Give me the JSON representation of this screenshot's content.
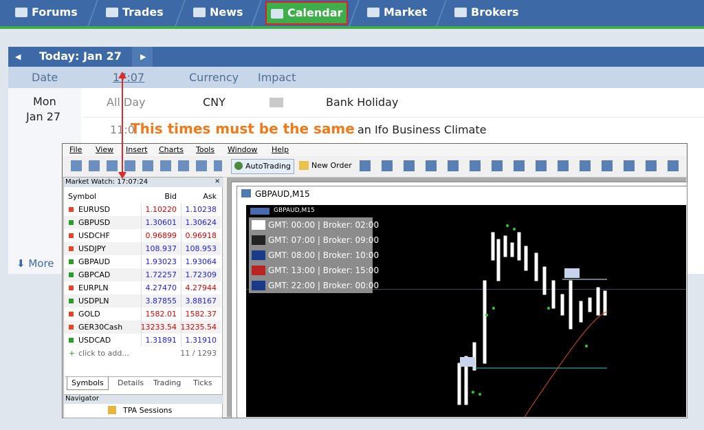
{
  "nav": {
    "tabs": [
      "Forums",
      "Trades",
      "News",
      "Calendar",
      "Market",
      "Brokers"
    ]
  },
  "calendar": {
    "today": "Today: Jan 27",
    "headers": [
      "Date",
      "17:07",
      "Currency",
      "Impact"
    ],
    "rows": [
      {
        "day": "Mon",
        "date": "Jan 27",
        "time": "All Day",
        "currency": "CNY",
        "event": "Bank Holiday"
      },
      {
        "time": "11:0",
        "event": "an Ifo Business Climate"
      }
    ],
    "more": "More"
  },
  "annotation": "This times must be the same",
  "terminal": {
    "menu": [
      "File",
      "View",
      "Insert",
      "Charts",
      "Tools",
      "Window",
      "Help"
    ],
    "toolbar": [
      "AutoTrading",
      "New Order"
    ],
    "market_watch": {
      "title": "Market Watch: 17:07:24",
      "headers": [
        "Symbol",
        "Bid",
        "Ask"
      ],
      "rows": [
        {
          "symbol": "EURUSD",
          "bid": "1.10220",
          "ask": "1.10238",
          "icon_color": "#e8442a",
          "bid_color": "#e00000",
          "ask_color": "#1a1aff"
        },
        {
          "symbol": "GBPUSD",
          "bid": "1.30601",
          "ask": "1.30624",
          "icon_color": "#28a028",
          "bid_color": "#1a1aff",
          "ask_color": "#1a1aff"
        },
        {
          "symbol": "USDCHF",
          "bid": "0.96899",
          "ask": "0.96918",
          "icon_color": "#e8442a",
          "bid_color": "#e00000",
          "ask_color": "#e00000"
        },
        {
          "symbol": "USDJPY",
          "bid": "108.937",
          "ask": "108.953",
          "icon_color": "#e8442a",
          "bid_color": "#1a1aff",
          "ask_color": "#1a1aff"
        },
        {
          "symbol": "GBPAUD",
          "bid": "1.93023",
          "ask": "1.93064",
          "icon_color": "#28a028",
          "bid_color": "#1a1aff",
          "ask_color": "#1a1aff"
        },
        {
          "symbol": "GBPCAD",
          "bid": "1.72257",
          "ask": "1.72309",
          "icon_color": "#28a028",
          "bid_color": "#1a1aff",
          "ask_color": "#1a1aff"
        },
        {
          "symbol": "EURPLN",
          "bid": "4.27470",
          "ask": "4.27944",
          "icon_color": "#e8442a",
          "bid_color": "#1a1aff",
          "ask_color": "#e00000"
        },
        {
          "symbol": "USDPLN",
          "bid": "3.87855",
          "ask": "3.88167",
          "icon_color": "#28a028",
          "bid_color": "#1a1aff",
          "ask_color": "#1a1aff"
        },
        {
          "symbol": "GOLD",
          "bid": "1582.01",
          "ask": "1582.37",
          "icon_color": "#e8442a",
          "bid_color": "#e00000",
          "ask_color": "#e00000"
        },
        {
          "symbol": "GER30Cash",
          "bid": "13233.54",
          "ask": "13235.54",
          "icon_color": "#e8442a",
          "bid_color": "#e00000",
          "ask_color": "#e00000"
        },
        {
          "symbol": "USDCAD",
          "bid": "1.31891",
          "ask": "1.31910",
          "icon_color": "#28a028",
          "bid_color": "#1a1aff",
          "ask_color": "#1a1aff"
        }
      ],
      "add": "click to add...",
      "count": "11 / 1293",
      "tabs": [
        "Symbols",
        "Details",
        "Trading",
        "Ticks"
      ]
    },
    "navigator": {
      "title": "Navigator",
      "item": "TPA Sessions"
    },
    "chart": {
      "window_title": "GBPAUD,M15",
      "label": "GBPAUD,M15",
      "sessions": [
        "GMT: 00:00 | Broker: 02:00",
        "GMT: 07:00 | Broker: 09:00",
        "GMT: 08:00 | Broker: 10:00",
        "GMT: 13:00 | Broker: 15:00",
        "GMT: 22:00 | Broker: 00:00"
      ]
    }
  }
}
